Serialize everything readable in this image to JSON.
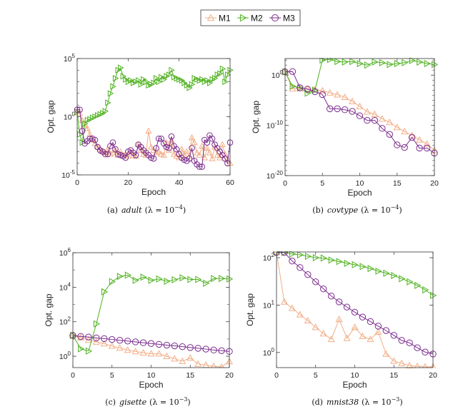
{
  "legend": {
    "placement": "top-center",
    "entries": [
      {
        "name": "M1",
        "color": "#f2ae86",
        "marker": "triangle-up"
      },
      {
        "name": "M2",
        "color": "#4fb21f",
        "marker": "triangle-right"
      },
      {
        "name": "M3",
        "color": "#7b2d8e",
        "marker": "circle"
      }
    ]
  },
  "chart_data": [
    {
      "type": "line",
      "caption": {
        "label": "(a)",
        "dataset": "adult",
        "lambda": "(λ = 10",
        "exp": "−4",
        "close": ")"
      },
      "xlabel": "Epoch",
      "ylabel": "Opt. gap",
      "yscale": "log",
      "xlim": [
        0,
        60
      ],
      "ylim": [
        1e-05,
        100000.0
      ],
      "xticks": [
        0,
        20,
        40,
        60
      ],
      "yticks": [
        {
          "value": 1e-05,
          "base": "10",
          "exp": "-5"
        },
        {
          "value": 1,
          "base": "10",
          "exp": "0"
        },
        {
          "value": 100000.0,
          "base": "10",
          "exp": "5"
        }
      ],
      "x": [
        0,
        1,
        2,
        3,
        4,
        5,
        6,
        7,
        8,
        9,
        10,
        11,
        12,
        13,
        14,
        15,
        16,
        17,
        18,
        19,
        20,
        21,
        22,
        23,
        24,
        25,
        26,
        27,
        28,
        29,
        30,
        31,
        32,
        33,
        34,
        35,
        36,
        37,
        38,
        39,
        40,
        41,
        42,
        43,
        44,
        45,
        46,
        47,
        48,
        49,
        50,
        51,
        52,
        53,
        54,
        55,
        56,
        57,
        58,
        59,
        60
      ],
      "series": [
        {
          "name": "M1",
          "values": [
            3,
            2,
            0.5,
            0.16,
            0.1,
            0.03,
            0.01,
            0.005,
            0.0025,
            0.0016,
            0.001,
            0.0008,
            0.0016,
            0.0006,
            0.0008,
            0.0013,
            0.0005,
            0.001,
            0.0005,
            0.0006,
            0.0004,
            0.001,
            0.0005,
            0.0004,
            0.004,
            0.0013,
            0.0006,
            0.0005,
            0.06,
            0.0025,
            0.0013,
            0.0008,
            0.001,
            0.0006,
            0.0005,
            0.006,
            0.0013,
            0.01,
            0.0006,
            0.0004,
            0.0003,
            0.0016,
            0.0005,
            0.001,
            0.0004,
            0.016,
            0.006,
            0.0008,
            0.0005,
            0.003,
            0.0003,
            0.002,
            0.0008,
            0.00025,
            0.0025,
            0.0005,
            0.0003,
            0.004,
            0.0006,
            0.00025,
            0.0001
          ]
        },
        {
          "name": "M2",
          "values": [
            2.5,
            0.03,
            0.006,
            0.25,
            0.5,
            0.6,
            0.8,
            1,
            1.3,
            1.6,
            2,
            3,
            16,
            100,
            400,
            2000,
            10000.0,
            16000.0,
            3000,
            1600,
            1000,
            1300,
            800,
            1000,
            1300,
            600,
            1600,
            1000,
            500,
            600,
            800,
            2000,
            1000,
            2500,
            1600,
            3000,
            4000,
            10000.0,
            2500,
            2000,
            1600,
            1300,
            800,
            500,
            300,
            600,
            2000,
            1600,
            1300,
            1600,
            1000,
            1300,
            800,
            1600,
            2000,
            4000,
            5000,
            13000.0,
            1000,
            4000,
            10000.0
          ]
        },
        {
          "name": "M3",
          "values": [
            4,
            4,
            0.06,
            0.005,
            0.008,
            0.013,
            0.013,
            0.01,
            0.0025,
            0.0013,
            0.001,
            0.0006,
            0.0006,
            0.003,
            0.006,
            0.0016,
            0.0006,
            0.0005,
            0.0004,
            0.0003,
            0.001,
            0.0013,
            0.0008,
            0.0005,
            0.004,
            0.0025,
            0.0013,
            0.0008,
            0.0005,
            0.0003,
            0.00025,
            0.002,
            0.013,
            0.013,
            0.005,
            0.0025,
            0.002,
            0.02,
            0.003,
            0.0016,
            0.0006,
            0.0003,
            0.0002,
            0.00016,
            0.00025,
            0.002,
            0.00016,
            8e-05,
            5e-05,
            5e-05,
            0.01,
            0.006,
            0.025,
            0.013,
            0.004,
            0.002,
            0.001,
            0.0005,
            0.00025,
            0.0001,
            0.006
          ]
        }
      ]
    },
    {
      "type": "line",
      "caption": {
        "label": "(b)",
        "dataset": "covtype",
        "lambda": "(λ = 10",
        "exp": "−4",
        "close": ")"
      },
      "xlabel": "Epoch",
      "ylabel": "Opt. gap",
      "yscale": "log",
      "xlim": [
        0,
        20
      ],
      "ylim": [
        1e-20,
        2000
      ],
      "xticks": [
        0,
        5,
        10,
        15,
        20
      ],
      "yticks": [
        {
          "value": 1e-20,
          "base": "10",
          "exp": "-20"
        },
        {
          "value": 1e-10,
          "base": "10",
          "exp": "-10"
        },
        {
          "value": 1,
          "base": "10",
          "exp": "0"
        }
      ],
      "x": [
        0,
        1,
        2,
        3,
        4,
        5,
        6,
        7,
        8,
        9,
        10,
        11,
        12,
        13,
        14,
        15,
        16,
        17,
        18,
        19,
        20
      ],
      "series": [
        {
          "name": "M1",
          "values": [
            4.5,
            0.002,
            0.0022,
            0.002,
            0.0013,
            0.0008,
            0.0003,
            0.00013,
            4e-05,
            6e-06,
            6e-07,
            5e-08,
            1.6e-08,
            2e-09,
            4e-10,
            4e-11,
            6e-12,
            1e-12,
            1.3e-13,
            2e-14,
            1e-15
          ]
        },
        {
          "name": "M2",
          "values": [
            4.5,
            0.006,
            0.003,
            0.00025,
            0.001,
            1000,
            1300,
            500,
            400,
            500,
            200,
            100,
            400,
            300,
            130,
            200,
            300,
            800,
            400,
            200,
            130
          ]
        },
        {
          "name": "M3",
          "values": [
            4.5,
            5,
            0.003,
            0.0016,
            0.0005,
            0.00013,
            2e-07,
            2e-07,
            1.3e-07,
            6e-08,
            8e-09,
            1e-09,
            1e-09,
            2.5e-11,
            1.6e-12,
            1.3e-14,
            4e-15,
            4e-13,
            3e-15,
            3e-15,
            3e-16
          ]
        }
      ]
    },
    {
      "type": "line",
      "caption": {
        "label": "(c)",
        "dataset": "gisette",
        "lambda": "(λ = 10",
        "exp": "−3",
        "close": ")"
      },
      "xlabel": "Epoch",
      "ylabel": "Opt. gap",
      "yscale": "log",
      "xlim": [
        0,
        20
      ],
      "ylim": [
        0.22,
        1000000.0
      ],
      "xticks": [
        0,
        5,
        10,
        15,
        20
      ],
      "yticks": [
        {
          "value": 1,
          "base": "10",
          "exp": "0"
        },
        {
          "value": 100,
          "base": "10",
          "exp": "2"
        },
        {
          "value": 10000.0,
          "base": "10",
          "exp": "4"
        },
        {
          "value": 1000000.0,
          "base": "10",
          "exp": "6"
        }
      ],
      "x": [
        0,
        1,
        2,
        3,
        4,
        5,
        6,
        7,
        8,
        9,
        10,
        11,
        12,
        13,
        14,
        15,
        16,
        17,
        18,
        19,
        20
      ],
      "series": [
        {
          "name": "M1",
          "values": [
            16,
            12,
            8.7,
            6.8,
            5.4,
            3.9,
            3,
            2.3,
            1.9,
            1.6,
            1.4,
            1.4,
            1,
            0.72,
            0.52,
            0.8,
            0.36,
            0.31,
            0.26,
            0.24,
            0.5
          ]
        },
        {
          "name": "M2",
          "values": [
            16,
            2.7,
            2,
            75,
            5400,
            21000.0,
            42000.0,
            50000.0,
            25000.0,
            38000.0,
            25000.0,
            30000.0,
            22000.0,
            27000.0,
            35000.0,
            28000.0,
            28000.0,
            17000.0,
            32000.0,
            32000.0,
            30000.0
          ]
        },
        {
          "name": "M3",
          "values": [
            16,
            14,
            13,
            11.5,
            10.5,
            9.4,
            8.4,
            7.6,
            6.8,
            6.1,
            5.5,
            4.9,
            4.4,
            4,
            3.6,
            3.2,
            2.9,
            2.6,
            2.3,
            2.1,
            1.9
          ]
        }
      ]
    },
    {
      "type": "line",
      "caption": {
        "label": "(d)",
        "dataset": "mnist38",
        "lambda": "(λ = 10",
        "exp": "−3",
        "close": ")"
      },
      "xlabel": "Epoch",
      "ylabel": "Opt. gap",
      "yscale": "log",
      "xlim": [
        0,
        20
      ],
      "ylim": [
        0.48,
        132
      ],
      "xticks": [
        0,
        5,
        10,
        15,
        20
      ],
      "yticks": [
        {
          "value": 1,
          "base": "10",
          "exp": "0"
        },
        {
          "value": 10,
          "base": "10",
          "exp": "1"
        },
        {
          "value": 100,
          "base": "10",
          "exp": "2"
        }
      ],
      "x": [
        0,
        1,
        2,
        3,
        4,
        5,
        6,
        7,
        8,
        9,
        10,
        11,
        12,
        13,
        14,
        15,
        16,
        17,
        18,
        19,
        20
      ],
      "series": [
        {
          "name": "M1",
          "values": [
            129,
            11.7,
            8.6,
            6.3,
            4.7,
            3.4,
            2.5,
            1.9,
            5,
            2,
            3.4,
            2.2,
            1.9,
            2.7,
            0.93,
            0.66,
            0.59,
            0.53,
            0.51,
            0.5,
            0.5
          ]
        },
        {
          "name": "M2",
          "values": [
            129,
            129,
            120,
            115,
            107,
            100,
            98,
            89,
            83,
            76,
            71,
            65,
            59,
            52,
            47,
            42,
            36,
            31,
            26,
            21,
            16
          ]
        },
        {
          "name": "M3",
          "values": [
            129,
            129,
            85,
            62,
            44,
            31,
            22,
            15.5,
            11.7,
            9.1,
            7.1,
            5.6,
            4.5,
            3.6,
            2.9,
            2.3,
            1.8,
            1.6,
            1.26,
            1.02,
            0.93
          ]
        }
      ]
    }
  ]
}
